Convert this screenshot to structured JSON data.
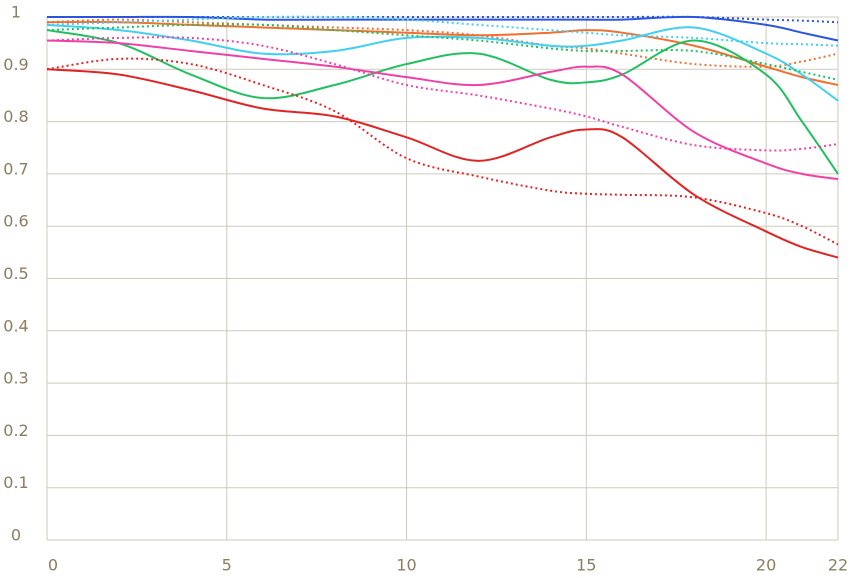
{
  "chart_data": {
    "type": "line",
    "x": [
      0,
      2,
      4,
      6,
      8,
      10,
      12,
      14,
      15,
      16,
      18,
      20,
      21,
      22
    ],
    "xlim": [
      0,
      22
    ],
    "xticks": [
      0,
      5,
      10,
      15,
      20,
      22
    ],
    "ylim": [
      0,
      1
    ],
    "yticks": [
      0,
      0.1,
      0.2,
      0.3,
      0.4,
      0.5,
      0.6,
      0.7,
      0.8,
      0.9,
      1
    ],
    "grid": true,
    "series": [
      {
        "color": "#2a55e0",
        "style": "solid",
        "values": [
          1.0,
          1.0,
          1.0,
          0.995,
          0.995,
          0.995,
          0.995,
          0.995,
          0.995,
          0.995,
          1.0,
          0.985,
          0.97,
          0.955
        ]
      },
      {
        "color": "#2a55e0",
        "style": "dotted",
        "values": [
          1.0,
          1.0,
          1.0,
          1.0,
          1.0,
          1.0,
          1.0,
          1.0,
          1.0,
          1.0,
          1.0,
          0.995,
          0.993,
          0.99
        ]
      },
      {
        "color": "#f07030",
        "style": "solid",
        "values": [
          0.99,
          0.99,
          0.985,
          0.98,
          0.975,
          0.97,
          0.965,
          0.97,
          0.975,
          0.97,
          0.945,
          0.905,
          0.885,
          0.87
        ]
      },
      {
        "color": "#f07030",
        "style": "dotted",
        "values": [
          0.99,
          0.995,
          0.99,
          0.985,
          0.98,
          0.975,
          0.965,
          0.945,
          0.94,
          0.93,
          0.91,
          0.905,
          0.915,
          0.93
        ]
      },
      {
        "color": "#40d0f0",
        "style": "solid",
        "values": [
          0.985,
          0.975,
          0.955,
          0.93,
          0.935,
          0.96,
          0.96,
          0.945,
          0.945,
          0.955,
          0.98,
          0.93,
          0.89,
          0.84
        ]
      },
      {
        "color": "#40d0f0",
        "style": "dotted",
        "values": [
          0.985,
          0.99,
          0.995,
          1.0,
          1.0,
          0.995,
          0.985,
          0.975,
          0.97,
          0.965,
          0.96,
          0.95,
          0.948,
          0.945
        ]
      },
      {
        "color": "#20c060",
        "style": "solid",
        "values": [
          0.975,
          0.95,
          0.89,
          0.845,
          0.87,
          0.91,
          0.93,
          0.88,
          0.875,
          0.89,
          0.955,
          0.89,
          0.8,
          0.7
        ]
      },
      {
        "color": "#20c060",
        "style": "dotted",
        "values": [
          0.975,
          0.98,
          0.985,
          0.985,
          0.975,
          0.965,
          0.955,
          0.94,
          0.935,
          0.935,
          0.935,
          0.91,
          0.895,
          0.88
        ]
      },
      {
        "color": "#f040a8",
        "style": "solid",
        "values": [
          0.955,
          0.95,
          0.935,
          0.92,
          0.905,
          0.885,
          0.87,
          0.895,
          0.905,
          0.89,
          0.78,
          0.72,
          0.7,
          0.69
        ]
      },
      {
        "color": "#f040a8",
        "style": "dotted",
        "values": [
          0.955,
          0.96,
          0.96,
          0.945,
          0.91,
          0.87,
          0.85,
          0.825,
          0.81,
          0.79,
          0.755,
          0.745,
          0.748,
          0.757
        ]
      },
      {
        "color": "#e02424",
        "style": "solid",
        "values": [
          0.9,
          0.89,
          0.86,
          0.825,
          0.81,
          0.77,
          0.725,
          0.77,
          0.785,
          0.77,
          0.66,
          0.59,
          0.56,
          0.54
        ]
      },
      {
        "color": "#e02424",
        "style": "dotted",
        "values": [
          0.9,
          0.92,
          0.91,
          0.87,
          0.82,
          0.73,
          0.695,
          0.668,
          0.662,
          0.66,
          0.655,
          0.625,
          0.6,
          0.565
        ]
      }
    ]
  }
}
